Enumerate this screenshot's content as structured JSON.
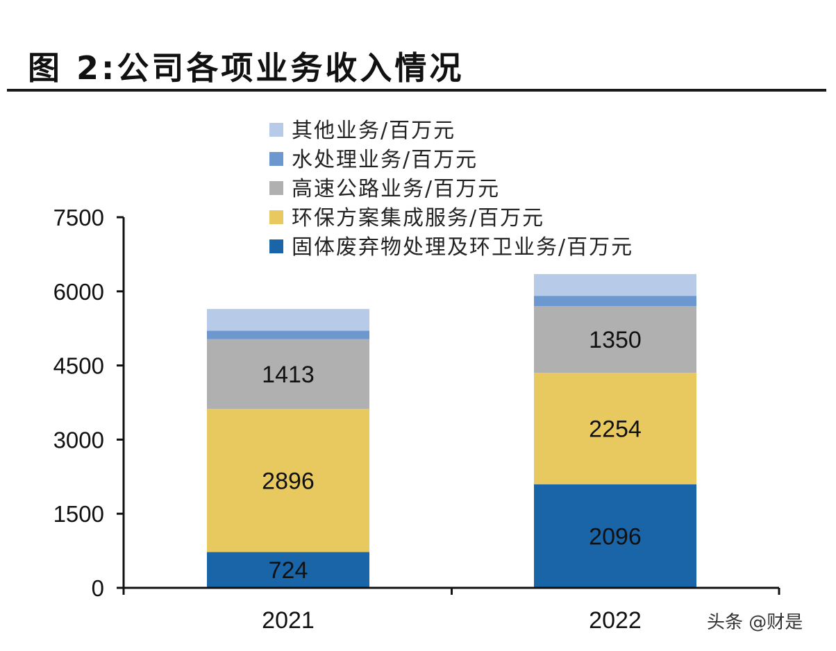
{
  "figure_title": "图 2:公司各项业务收入情况",
  "watermark": "头条 @财是",
  "colors": {
    "solid_waste": "#1a64a8",
    "env_solutions": "#e8c95f",
    "highway": "#b0b0b0",
    "water": "#6d97cf",
    "other": "#b7cbe8"
  },
  "chart_data": {
    "type": "bar",
    "stacked": true,
    "categories": [
      "2021",
      "2022"
    ],
    "ylim": [
      0,
      7500
    ],
    "yticks": [
      0,
      1500,
      3000,
      4500,
      6000,
      7500
    ],
    "grid": false,
    "legend_position": "top-right",
    "series": [
      {
        "name": "固体废弃物处理及环卫业务/百万元",
        "color_key": "solid_waste",
        "values": [
          724,
          2096
        ],
        "labels": [
          "724",
          "2096"
        ]
      },
      {
        "name": "环保方案集成服务/百万元",
        "color_key": "env_solutions",
        "values": [
          2896,
          2254
        ],
        "labels": [
          "2896",
          "2254"
        ]
      },
      {
        "name": "高速公路业务/百万元",
        "color_key": "highway",
        "values": [
          1413,
          1350
        ],
        "labels": [
          "1413",
          "1350"
        ]
      },
      {
        "name": "水处理业务/百万元",
        "color_key": "water",
        "values": [
          170,
          210
        ],
        "labels": [
          "",
          ""
        ]
      },
      {
        "name": "其他业务/百万元",
        "color_key": "other",
        "values": [
          440,
          440
        ],
        "labels": [
          "",
          ""
        ]
      }
    ]
  }
}
